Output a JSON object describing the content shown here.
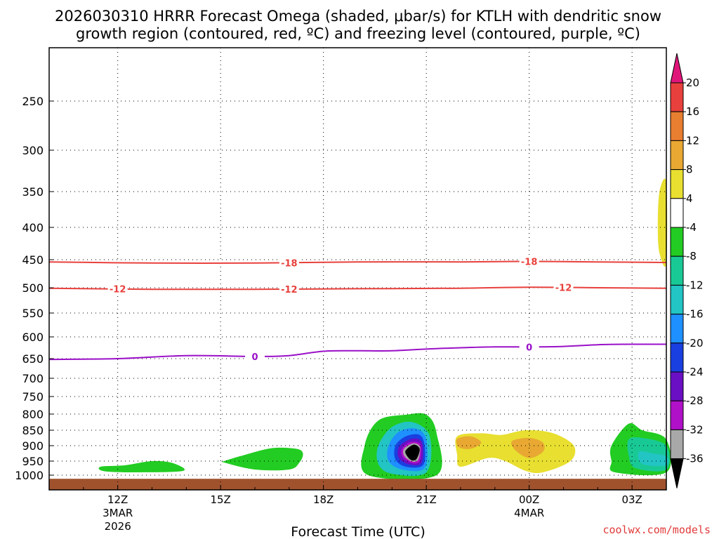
{
  "chart_data": {
    "type": "contour-cross-section",
    "title_line1": "2026030310 HRRR Forecast Omega (shaded, μbar/s) for KTLH with dendritic snow",
    "title_line2": "growth region (contoured, red, ºC) and freezing level (contoured, purple, ºC)",
    "xlabel": "Forecast Time (UTC)",
    "ylabel": "",
    "x_ticks": [
      {
        "label": "12Z",
        "sub1": "3MAR",
        "sub2": "2026",
        "hour": 12
      },
      {
        "label": "15Z",
        "sub1": "",
        "sub2": "",
        "hour": 15
      },
      {
        "label": "18Z",
        "sub1": "",
        "sub2": "",
        "hour": 18
      },
      {
        "label": "21Z",
        "sub1": "",
        "sub2": "",
        "hour": 21
      },
      {
        "label": "00Z",
        "sub1": "4MAR",
        "sub2": "",
        "hour": 24
      },
      {
        "label": "03Z",
        "sub1": "",
        "sub2": "",
        "hour": 27
      }
    ],
    "x_range_hours": [
      10,
      28
    ],
    "y_ticks": [
      250,
      300,
      350,
      400,
      450,
      500,
      550,
      600,
      650,
      700,
      750,
      800,
      850,
      900,
      950,
      1000
    ],
    "y_range_mb": [
      200,
      1020
    ],
    "grid": true,
    "red_contours": [
      {
        "label": "-18",
        "label_hours": [
          17.0,
          24.0
        ],
        "points": [
          [
            10,
            454
          ],
          [
            13,
            456
          ],
          [
            16,
            456
          ],
          [
            19,
            454
          ],
          [
            22,
            454
          ],
          [
            24,
            453
          ],
          [
            26,
            454
          ],
          [
            28,
            455
          ]
        ]
      },
      {
        "label": "-12",
        "label_hours": [
          12.0,
          17.0,
          25.0
        ],
        "points": [
          [
            10,
            501
          ],
          [
            13,
            503
          ],
          [
            16,
            503
          ],
          [
            19,
            502
          ],
          [
            22,
            501
          ],
          [
            24,
            499
          ],
          [
            26,
            500
          ],
          [
            28,
            501
          ]
        ]
      }
    ],
    "purple_contours": [
      {
        "label": "0",
        "label_hours": [
          16.0,
          24.0
        ],
        "points": [
          [
            10,
            652
          ],
          [
            12,
            650
          ],
          [
            14,
            643
          ],
          [
            16,
            645
          ],
          [
            17,
            643
          ],
          [
            18,
            633
          ],
          [
            19,
            632
          ],
          [
            20,
            632
          ],
          [
            21,
            628
          ],
          [
            22,
            625
          ],
          [
            23,
            623
          ],
          [
            24,
            623
          ],
          [
            25,
            622
          ],
          [
            26,
            618
          ],
          [
            27,
            617
          ],
          [
            28,
            617
          ]
        ]
      }
    ],
    "shaded_regions": [
      {
        "label": "-4 to -8",
        "color": "#22cc22",
        "points": [
          [
            11.5,
            970
          ],
          [
            12.2,
            965
          ],
          [
            13.0,
            950
          ],
          [
            13.6,
            957
          ],
          [
            13.9,
            985
          ],
          [
            12.5,
            990
          ],
          [
            11.6,
            986
          ]
        ]
      },
      {
        "label": "-4 to -8",
        "color": "#22cc22",
        "points": [
          [
            15.1,
            950
          ],
          [
            15.7,
            930
          ],
          [
            16.5,
            908
          ],
          [
            17.2,
            910
          ],
          [
            17.4,
            925
          ],
          [
            17.3,
            955
          ],
          [
            17.0,
            980
          ],
          [
            16.0,
            980
          ],
          [
            15.1,
            955
          ]
        ]
      },
      {
        "label": "-4 to -8",
        "color": "#22cc22",
        "points": [
          [
            19.2,
            900
          ],
          [
            19.6,
            820
          ],
          [
            20.4,
            802
          ],
          [
            21.0,
            802
          ],
          [
            21.3,
            860
          ],
          [
            21.3,
            1000
          ],
          [
            19.3,
            1000
          ]
        ]
      },
      {
        "label": "-12 to -16",
        "color": "#22c4c4",
        "points": [
          [
            19.6,
            900
          ],
          [
            20.0,
            840
          ],
          [
            20.6,
            825
          ],
          [
            21.1,
            870
          ],
          [
            21.0,
            990
          ],
          [
            20.0,
            995
          ],
          [
            19.6,
            960
          ]
        ]
      },
      {
        "label": "-16 to -20",
        "color": "#1e90ff",
        "points": [
          [
            19.9,
            900
          ],
          [
            20.2,
            855
          ],
          [
            20.7,
            845
          ],
          [
            21.0,
            880
          ],
          [
            20.95,
            975
          ],
          [
            20.3,
            980
          ],
          [
            19.9,
            950
          ]
        ]
      },
      {
        "label": "-20 to -24",
        "color": "#1a3fe0",
        "points": [
          [
            20.1,
            900
          ],
          [
            20.4,
            870
          ],
          [
            20.8,
            865
          ],
          [
            20.95,
            900
          ],
          [
            20.9,
            965
          ],
          [
            20.4,
            970
          ],
          [
            20.1,
            945
          ]
        ]
      },
      {
        "label": "-24 to -28",
        "color": "#6a0fc4",
        "points": [
          [
            20.2,
            905
          ],
          [
            20.5,
            880
          ],
          [
            20.8,
            880
          ],
          [
            20.9,
            905
          ],
          [
            20.85,
            958
          ],
          [
            20.5,
            962
          ],
          [
            20.2,
            940
          ]
        ]
      },
      {
        "label": "-28 to -32",
        "color": "#b010c8",
        "points": [
          [
            20.3,
            908
          ],
          [
            20.55,
            888
          ],
          [
            20.8,
            892
          ],
          [
            20.85,
            912
          ],
          [
            20.8,
            952
          ],
          [
            20.55,
            956
          ],
          [
            20.3,
            935
          ]
        ]
      },
      {
        "label": "-32 to -36",
        "color": "#a8a8a8",
        "points": [
          [
            20.35,
            910
          ],
          [
            20.6,
            893
          ],
          [
            20.78,
            898
          ],
          [
            20.82,
            915
          ],
          [
            20.75,
            948
          ],
          [
            20.55,
            950
          ],
          [
            20.35,
            932
          ]
        ]
      },
      {
        "label": "< -36",
        "color": "#000000",
        "points": [
          [
            20.4,
            915
          ],
          [
            20.62,
            897
          ],
          [
            20.78,
            905
          ],
          [
            20.8,
            920
          ],
          [
            20.7,
            945
          ],
          [
            20.55,
            946
          ],
          [
            20.42,
            930
          ]
        ]
      },
      {
        "label": "4 to 8",
        "color": "#e8df30",
        "points": [
          [
            21.9,
            870
          ],
          [
            22.6,
            860
          ],
          [
            23.2,
            865
          ],
          [
            23.9,
            850
          ],
          [
            24.7,
            860
          ],
          [
            25.3,
            900
          ],
          [
            25.2,
            950
          ],
          [
            24.4,
            990
          ],
          [
            23.9,
            985
          ],
          [
            23.3,
            950
          ],
          [
            22.8,
            940
          ],
          [
            22.0,
            970
          ],
          [
            21.9,
            930
          ]
        ]
      },
      {
        "label": "8 to 12",
        "color": "#e8a832",
        "points": [
          [
            21.9,
            878
          ],
          [
            22.3,
            870
          ],
          [
            22.6,
            890
          ],
          [
            22.3,
            910
          ],
          [
            21.95,
            905
          ]
        ]
      },
      {
        "label": "8 to 12",
        "color": "#e8a832",
        "points": [
          [
            23.5,
            885
          ],
          [
            24.0,
            875
          ],
          [
            24.4,
            890
          ],
          [
            24.4,
            920
          ],
          [
            24.0,
            940
          ],
          [
            23.6,
            915
          ]
        ]
      },
      {
        "label": "4 to 8",
        "color": "#e8df30",
        "points": [
          [
            27.8,
            350
          ],
          [
            28,
            340
          ],
          [
            28,
            455
          ],
          [
            27.8,
            440
          ],
          [
            27.75,
            400
          ]
        ]
      },
      {
        "label": "-4 to -8",
        "color": "#22cc22",
        "points": [
          [
            26.4,
            900
          ],
          [
            26.9,
            830
          ],
          [
            27.3,
            850
          ],
          [
            28,
            880
          ],
          [
            28,
            990
          ],
          [
            26.5,
            990
          ],
          [
            26.4,
            950
          ]
        ]
      },
      {
        "label": "-8 to -12",
        "color": "#19c995",
        "points": [
          [
            26.9,
            880
          ],
          [
            27.3,
            875
          ],
          [
            28,
            900
          ],
          [
            28,
            980
          ],
          [
            27.1,
            975
          ],
          [
            26.9,
            930
          ]
        ]
      },
      {
        "label": "-12 to -16",
        "color": "#22c4c4",
        "points": [
          [
            27.2,
            920
          ],
          [
            27.6,
            925
          ],
          [
            28,
            935
          ],
          [
            28,
            965
          ],
          [
            27.3,
            960
          ]
        ]
      }
    ],
    "terrain_color": "#a0522d",
    "colorbar": {
      "labels": [
        "20",
        "16",
        "12",
        "8",
        "4",
        "-4",
        "-8",
        "-12",
        "-16",
        "-20",
        "-24",
        "-28",
        "-32",
        "-36"
      ],
      "colors": [
        "#e0157a",
        "#e8403c",
        "#e87e30",
        "#e8a832",
        "#e8df30",
        "#ffffff",
        "#22cc22",
        "#19c995",
        "#22c4c4",
        "#1e90ff",
        "#1a3fe0",
        "#6a0fc4",
        "#b010c8",
        "#a8a8a8",
        "#000000"
      ]
    }
  },
  "credit": "coolwx.com/models"
}
